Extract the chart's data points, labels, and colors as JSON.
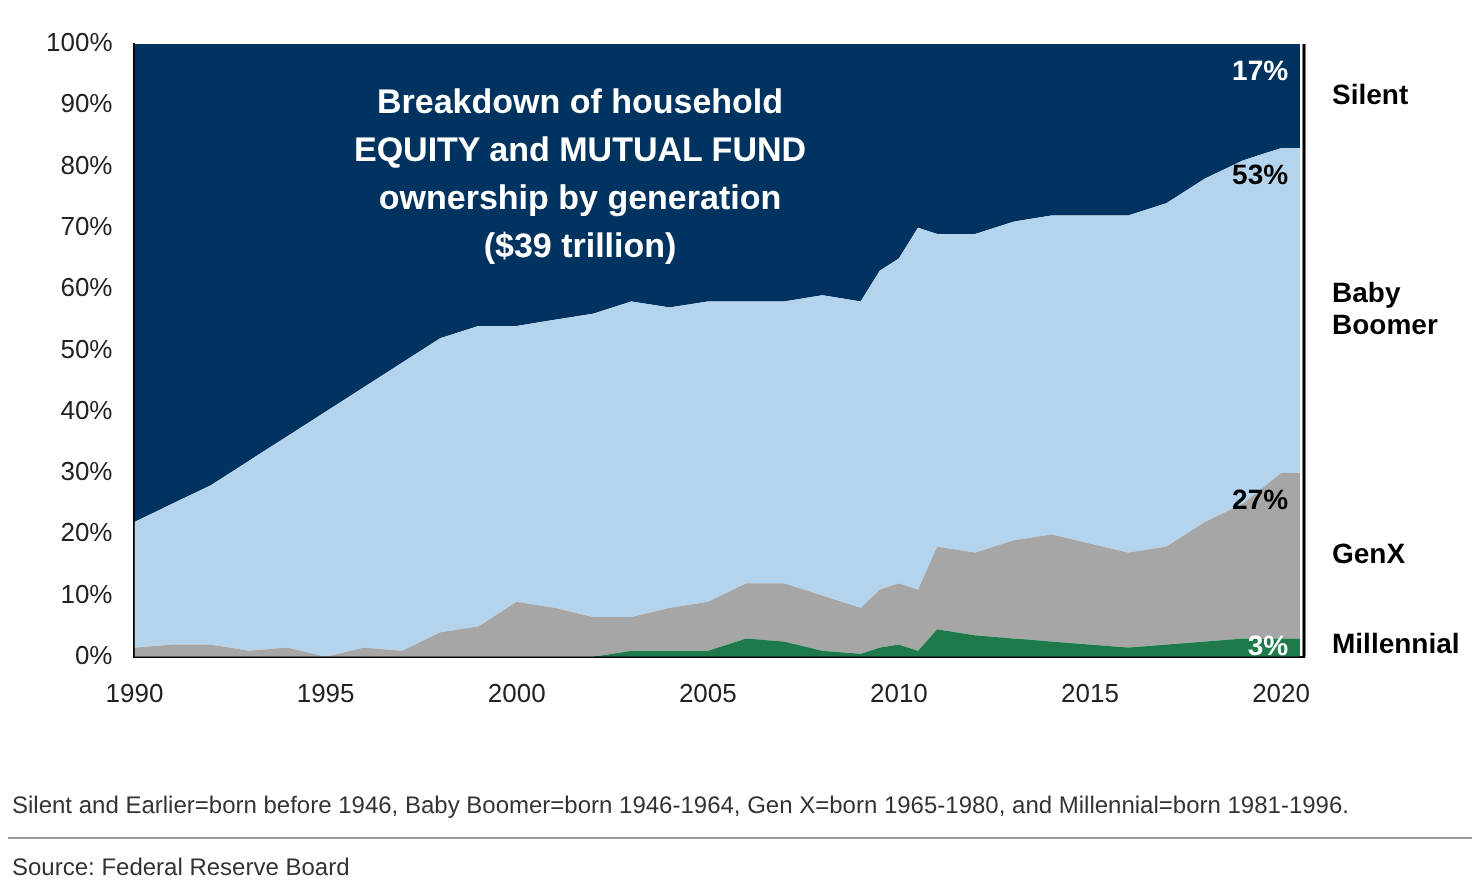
{
  "chart_data": {
    "type": "area",
    "stacked": true,
    "title": "Breakdown of household\nEQUITY and MUTUAL FUND\nownership by generation\n($39 trillion)",
    "x": [
      1990,
      1991,
      1992,
      1993,
      1994,
      1995,
      1996,
      1997,
      1998,
      1999,
      2000,
      2001,
      2002,
      2003,
      2004,
      2005,
      2006,
      2007,
      2008,
      2009,
      2009.5,
      2010,
      2010.5,
      2011,
      2012,
      2013,
      2014,
      2015,
      2016,
      2017,
      2018,
      2019,
      2020,
      2020.5
    ],
    "series": [
      {
        "name": "Millennial",
        "color": "#1e7a4a",
        "values": [
          0,
          0,
          0,
          0,
          0,
          0,
          0,
          0,
          0,
          0,
          0,
          0,
          0,
          1,
          1,
          1,
          3,
          2.5,
          1,
          0.5,
          1.5,
          2,
          1,
          4.5,
          3.5,
          3,
          2.5,
          2,
          1.5,
          2,
          2.5,
          3,
          3,
          3
        ],
        "value_labels": [
          null,
          null,
          null,
          null,
          null,
          null,
          null,
          null,
          null,
          null,
          null,
          null,
          null,
          null,
          null,
          null,
          null,
          null,
          null,
          null,
          null,
          null,
          null,
          null,
          null,
          null,
          null,
          null,
          null,
          null,
          null,
          null,
          null,
          "3%"
        ]
      },
      {
        "name": "GenX",
        "color": "#a6a6a6",
        "values": [
          1.5,
          2,
          2,
          1,
          1.5,
          0,
          1.5,
          1,
          4,
          5,
          9,
          8,
          6.5,
          5.5,
          7,
          8,
          9,
          9.5,
          9,
          7.5,
          9.5,
          10,
          10,
          13.5,
          13.5,
          16,
          17.5,
          16.5,
          15.5,
          16,
          19.5,
          22,
          27,
          27
        ],
        "value_labels": [
          null,
          null,
          null,
          null,
          null,
          null,
          null,
          null,
          null,
          null,
          null,
          null,
          null,
          null,
          null,
          null,
          null,
          null,
          null,
          null,
          null,
          null,
          null,
          null,
          null,
          null,
          null,
          null,
          null,
          null,
          null,
          null,
          null,
          "27%"
        ]
      },
      {
        "name": "Baby Boomer",
        "color": "#b4d4ee",
        "values": [
          20.5,
          23,
          26,
          31,
          34.5,
          40,
          42.5,
          47,
          48,
          49,
          45,
          47,
          49.5,
          51.5,
          49,
          49,
          46,
          46,
          49,
          50,
          52,
          53,
          59,
          51,
          52,
          52,
          52,
          53.5,
          55,
          56,
          56,
          56,
          53,
          53
        ],
        "value_labels": [
          null,
          null,
          null,
          null,
          null,
          null,
          null,
          null,
          null,
          null,
          null,
          null,
          null,
          null,
          null,
          null,
          null,
          null,
          null,
          null,
          null,
          null,
          null,
          null,
          null,
          null,
          null,
          null,
          null,
          null,
          null,
          null,
          null,
          "53%"
        ]
      },
      {
        "name": "Silent",
        "color": "#003360",
        "values": [
          78,
          75,
          72,
          68,
          64,
          60,
          56,
          52,
          48,
          46,
          46,
          45,
          44,
          42,
          43,
          42,
          42,
          42,
          41,
          42,
          37,
          35,
          30,
          31,
          31,
          29,
          28,
          28,
          28,
          26,
          22,
          19,
          17,
          17
        ],
        "value_labels": [
          null,
          null,
          null,
          null,
          null,
          null,
          null,
          null,
          null,
          null,
          null,
          null,
          null,
          null,
          null,
          null,
          null,
          null,
          null,
          null,
          null,
          null,
          null,
          null,
          null,
          null,
          null,
          null,
          null,
          null,
          null,
          null,
          null,
          "17%"
        ]
      }
    ],
    "xlim": [
      1990,
      2020.6
    ],
    "xticks": [
      1990,
      1995,
      2000,
      2005,
      2010,
      2015,
      2020
    ],
    "ylim": [
      0,
      100
    ],
    "yticks": [
      {
        "value": 0,
        "label": "0%"
      },
      {
        "value": 10,
        "label": "10%"
      },
      {
        "value": 20,
        "label": "20%"
      },
      {
        "value": 30,
        "label": "30%"
      },
      {
        "value": 40,
        "label": "40%"
      },
      {
        "value": 50,
        "label": "50%"
      },
      {
        "value": 60,
        "label": "60%"
      },
      {
        "value": 70,
        "label": "70%"
      },
      {
        "value": 80,
        "label": "80%"
      },
      {
        "value": 90,
        "label": "90%"
      },
      {
        "value": 100,
        "label": "100%"
      }
    ],
    "grid": false,
    "legend": false,
    "annotations": [
      "Silent and Earlier=born before 1946, Baby Boomer=born 1946-1964, Gen X=born 1965-1980, and Millennial=born 1981-1996.",
      "Source: Federal Reserve Board"
    ]
  }
}
